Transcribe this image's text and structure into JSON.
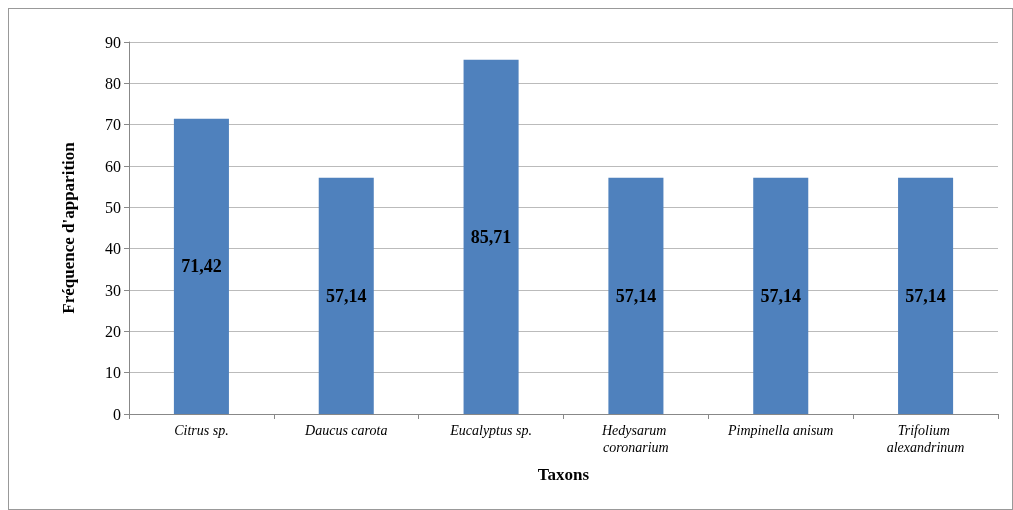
{
  "chart_data": {
    "type": "bar",
    "xlabel": "Taxons",
    "ylabel": "Fréquence d'apparition",
    "categories": [
      "Citrus sp.",
      "Daucus carota",
      "Eucalyptus sp.",
      "Hedysarum coronarium",
      "Pimpinella anisum",
      "Trifolium alexandrinum"
    ],
    "values": [
      71.42,
      57.14,
      85.71,
      57.14,
      57.14,
      57.14
    ],
    "value_labels": [
      "71,42",
      "57,14",
      "85,71",
      "57,14",
      "57,14",
      "57,14"
    ],
    "color": "#4f81bd",
    "ylim": [
      0,
      90
    ],
    "yticks": [
      0,
      10,
      20,
      30,
      40,
      50,
      60,
      70,
      80,
      90
    ],
    "grid": "y"
  }
}
